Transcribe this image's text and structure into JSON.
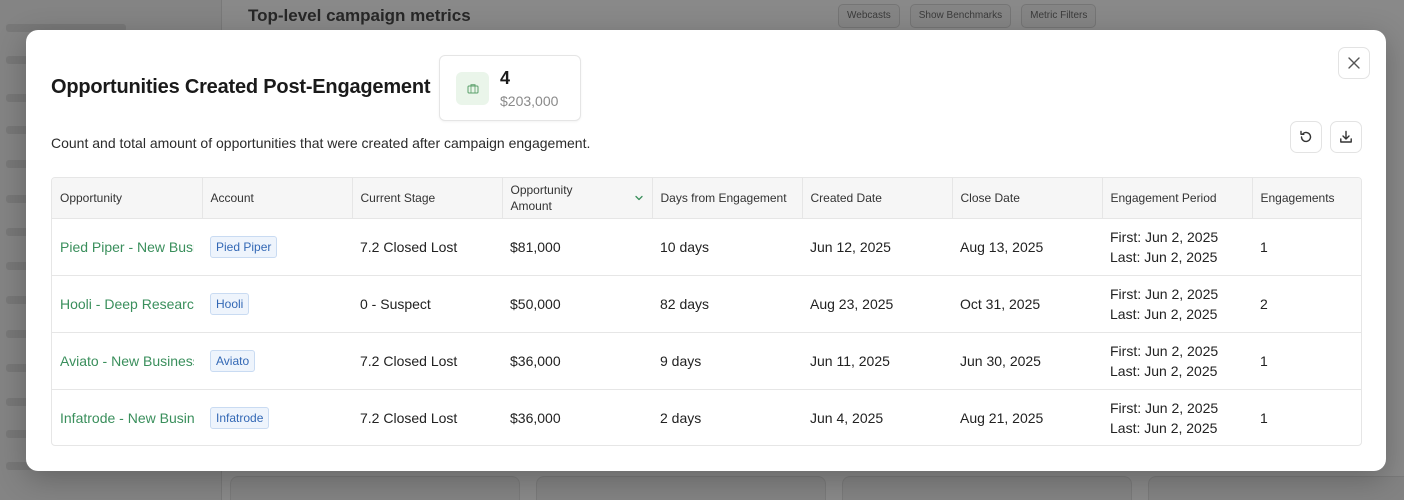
{
  "background": {
    "header_title": "Top-level campaign metrics",
    "controls": [
      "Webcasts",
      "Show Benchmarks",
      "Metric Filters"
    ]
  },
  "modal": {
    "title": "Opportunities Created Post-Engagement",
    "summary": {
      "count": "4",
      "amount": "$203,000",
      "icon": "briefcase-icon"
    },
    "description": "Count and total amount of opportunities that were created after campaign engagement.",
    "buttons": {
      "close_icon": "close-icon",
      "refresh_icon": "refresh-icon",
      "download_icon": "download-icon"
    }
  },
  "table": {
    "columns": [
      {
        "label": "Opportunity"
      },
      {
        "label": "Account"
      },
      {
        "label": "Current Stage"
      },
      {
        "label": "Opportunity Amount",
        "sorted": "desc"
      },
      {
        "label": "Days from Engagement"
      },
      {
        "label": "Created Date"
      },
      {
        "label": "Close Date"
      },
      {
        "label": "Engagement Period"
      },
      {
        "label": "Engagements"
      }
    ],
    "rows": [
      {
        "opportunity": "Pied Piper - New Business",
        "account": "Pied Piper",
        "stage": "7.2 Closed Lost",
        "amount": "$81,000",
        "days": "10 days",
        "created": "Jun 12, 2025",
        "close": "Aug 13, 2025",
        "first": "First: Jun 2, 2025",
        "last": "Last: Jun 2, 2025",
        "engagements": "1"
      },
      {
        "opportunity": "Hooli - Deep Research",
        "account": "Hooli",
        "stage": "0 - Suspect",
        "amount": "$50,000",
        "days": "82 days",
        "created": "Aug 23, 2025",
        "close": "Oct 31, 2025",
        "first": "First: Jun 2, 2025",
        "last": "Last: Jun 2, 2025",
        "engagements": "2"
      },
      {
        "opportunity": "Aviato - New Business",
        "account": "Aviato",
        "stage": "7.2 Closed Lost",
        "amount": "$36,000",
        "days": "9 days",
        "created": "Jun 11, 2025",
        "close": "Jun 30, 2025",
        "first": "First: Jun 2, 2025",
        "last": "Last: Jun 2, 2025",
        "engagements": "1"
      },
      {
        "opportunity": "Infatrode - New Business",
        "account": "Infatrode",
        "stage": "7.2 Closed Lost",
        "amount": "$36,000",
        "days": "2 days",
        "created": "Jun 4, 2025",
        "close": "Aug 21, 2025",
        "first": "First: Jun 2, 2025",
        "last": "Last: Jun 2, 2025",
        "engagements": "1"
      }
    ]
  },
  "colors": {
    "link_green": "#3a8f5c",
    "badge_blue": "#3368b5",
    "icon_bg": "#eaf5ea"
  }
}
